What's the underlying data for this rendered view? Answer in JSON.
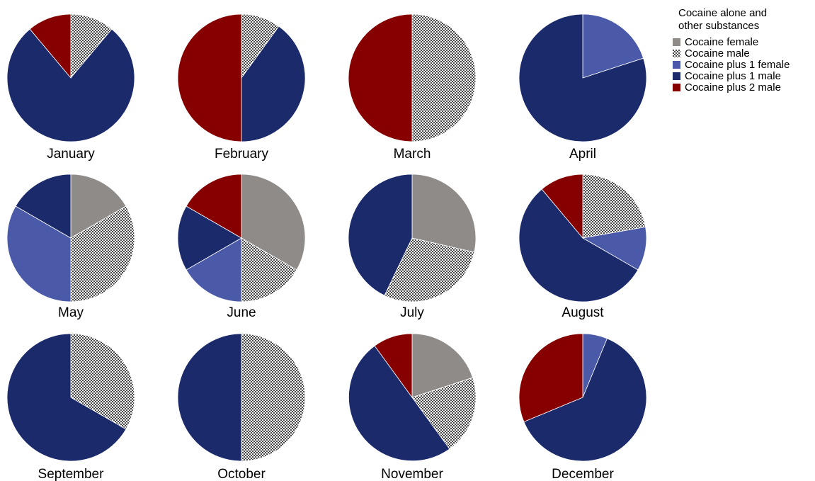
{
  "chart_data": {
    "type": "pie",
    "legend": {
      "title_lines": [
        "Cocaine alone and",
        "other substances"
      ],
      "placement": "top-right"
    },
    "categories": [
      {
        "name": "Cocaine female",
        "color": "#8f8b88",
        "pattern": "solid"
      },
      {
        "name": "Cocaine male",
        "color": "#8a8a8a",
        "pattern": "checker"
      },
      {
        "name": "Cocaine plus 1 female",
        "color": "#4a5aa8",
        "pattern": "solid"
      },
      {
        "name": "Cocaine plus 1 male",
        "color": "#1b2a6b",
        "pattern": "solid"
      },
      {
        "name": "Cocaine plus 2 male",
        "color": "#870000",
        "pattern": "solid"
      }
    ],
    "pies": [
      {
        "label": "January",
        "values": [
          0,
          1,
          0,
          7,
          1
        ]
      },
      {
        "label": "February",
        "values": [
          0,
          1,
          0,
          4,
          5
        ]
      },
      {
        "label": "March",
        "values": [
          0,
          1,
          0,
          0,
          1
        ]
      },
      {
        "label": "April",
        "values": [
          0,
          0,
          1,
          4,
          0
        ]
      },
      {
        "label": "May",
        "values": [
          1,
          2,
          2,
          1,
          0
        ]
      },
      {
        "label": "June",
        "values": [
          2,
          1,
          1,
          1,
          1
        ]
      },
      {
        "label": "July",
        "values": [
          2,
          2,
          0,
          3,
          0
        ]
      },
      {
        "label": "August",
        "values": [
          0,
          2,
          1,
          5,
          1
        ]
      },
      {
        "label": "September",
        "values": [
          0,
          1,
          0,
          2,
          0
        ]
      },
      {
        "label": "October",
        "values": [
          0,
          1,
          0,
          1,
          0
        ]
      },
      {
        "label": "November",
        "values": [
          2,
          2,
          0,
          5,
          1
        ]
      },
      {
        "label": "December",
        "values": [
          0,
          0,
          1,
          10,
          5
        ]
      }
    ]
  }
}
